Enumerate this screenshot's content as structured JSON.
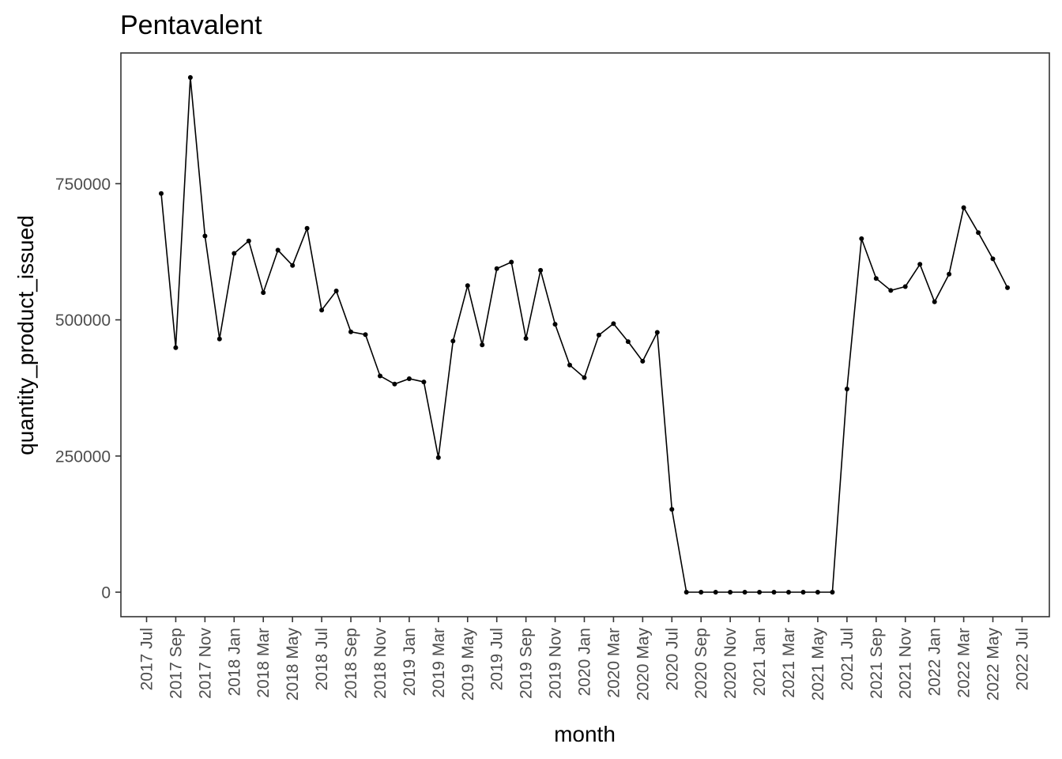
{
  "chart_data": {
    "type": "line",
    "title": "Pentavalent",
    "xlabel": "month",
    "ylabel": "quantity_product_issued",
    "ylim": [
      -45000,
      990000
    ],
    "y_ticks": [
      0,
      250000,
      500000,
      750000
    ],
    "y_tick_labels": [
      "0",
      "250000",
      "500000",
      "750000"
    ],
    "x_ticks": [
      "2017-07",
      "2017-09",
      "2017-11",
      "2018-01",
      "2018-03",
      "2018-05",
      "2018-07",
      "2018-09",
      "2018-11",
      "2019-01",
      "2019-03",
      "2019-05",
      "2019-07",
      "2019-09",
      "2019-11",
      "2020-01",
      "2020-03",
      "2020-05",
      "2020-07",
      "2020-09",
      "2020-11",
      "2021-01",
      "2021-03",
      "2021-05",
      "2021-07",
      "2021-09",
      "2021-11",
      "2022-01",
      "2022-03",
      "2022-05",
      "2022-07"
    ],
    "x_tick_labels": [
      "2017 Jul",
      "2017 Sep",
      "2017 Nov",
      "2018 Jan",
      "2018 Mar",
      "2018 May",
      "2018 Jul",
      "2018 Sep",
      "2018 Nov",
      "2019 Jan",
      "2019 Mar",
      "2019 May",
      "2019 Jul",
      "2019 Sep",
      "2019 Nov",
      "2020 Jan",
      "2020 Mar",
      "2020 May",
      "2020 Jul",
      "2020 Sep",
      "2020 Nov",
      "2021 Jan",
      "2021 Mar",
      "2021 May",
      "2021 Jul",
      "2021 Sep",
      "2021 Nov",
      "2022 Jan",
      "2022 Mar",
      "2022 May",
      "2022 Jul"
    ],
    "grid": false,
    "series": [
      {
        "x": [
          "2017-08-01",
          "2017-09-01",
          "2017-10-01",
          "2017-11-01",
          "2017-12-01",
          "2018-01-01",
          "2018-02-01",
          "2018-03-01",
          "2018-04-01",
          "2018-05-01",
          "2018-06-01",
          "2018-07-01",
          "2018-08-01",
          "2018-09-01",
          "2018-10-01",
          "2018-11-01",
          "2018-12-01",
          "2019-01-01",
          "2019-02-01",
          "2019-03-01",
          "2019-04-01",
          "2019-05-01",
          "2019-06-01",
          "2019-07-01",
          "2019-08-01",
          "2019-09-01",
          "2019-10-01",
          "2019-11-01",
          "2019-12-01",
          "2020-01-01",
          "2020-02-01",
          "2020-03-01",
          "2020-04-01",
          "2020-05-01",
          "2020-06-01",
          "2020-07-01",
          "2020-08-01",
          "2020-09-01",
          "2020-10-01",
          "2020-11-01",
          "2020-12-01",
          "2021-01-01",
          "2021-02-01",
          "2021-03-01",
          "2021-04-01",
          "2021-05-01",
          "2021-06-01",
          "2021-07-01",
          "2021-08-01",
          "2021-09-01",
          "2021-10-01",
          "2021-11-01",
          "2021-12-01",
          "2022-01-01",
          "2022-02-01",
          "2022-03-01",
          "2022-04-01",
          "2022-05-01",
          "2022-06-01"
        ],
        "values": [
          732000,
          449000,
          945000,
          654000,
          465000,
          622000,
          645000,
          550000,
          628000,
          600000,
          668000,
          518000,
          553000,
          478000,
          473000,
          397000,
          382000,
          392000,
          386000,
          247000,
          461000,
          563000,
          454000,
          594000,
          606000,
          466000,
          591000,
          492000,
          417000,
          394000,
          472000,
          493000,
          460000,
          424000,
          477000,
          152000,
          0,
          0,
          0,
          0,
          0,
          0,
          0,
          0,
          0,
          0,
          0,
          373000,
          649000,
          576000,
          554000,
          561000,
          602000,
          533000,
          584000,
          706000,
          660000,
          612000,
          559000
        ]
      }
    ]
  }
}
